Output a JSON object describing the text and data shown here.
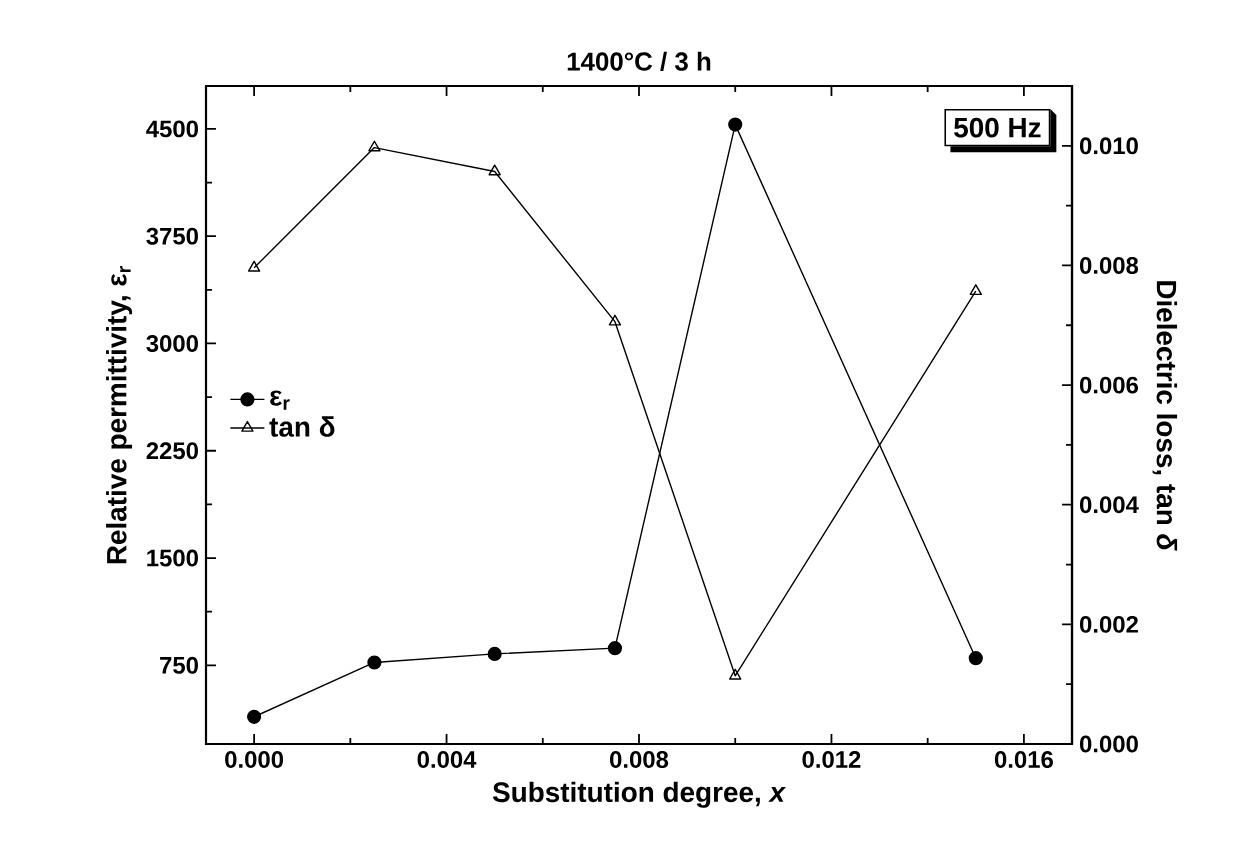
{
  "chart_data": {
    "type": "line",
    "title": "1400°C / 3 h",
    "xlabel": "Substitution degree, *x*",
    "ylabel": "Relative permittivity, ε$_{r}$",
    "y2label": "Dielectric loss, tan *δ*",
    "x": [
      0,
      0.0025,
      0.005,
      0.0075,
      0.01,
      0.015
    ],
    "series": [
      {
        "name": "ε$_{r}$",
        "color": "#000000",
        "marker": "circle",
        "values": [
          390,
          770,
          830,
          870,
          4530,
          800
        ]
      },
      {
        "name": "tan δ",
        "color": "#000000",
        "marker": "triangle",
        "axis": "y2",
        "values": [
          0.00796,
          0.00997,
          0.00957,
          0.00706,
          0.00114,
          0.00757
        ]
      }
    ],
    "xlim": [
      -0.001,
      0.017
    ],
    "xticks": [
      {
        "value": 0,
        "label": "0.000"
      },
      {
        "value": 0.004,
        "label": "0.004"
      },
      {
        "value": 0.008,
        "label": "0.008"
      },
      {
        "value": 0.012,
        "label": "0.012"
      },
      {
        "value": 0.016,
        "label": "0.016"
      }
    ],
    "ylim": [
      200,
      4800
    ],
    "yticks": [
      750,
      1500,
      2250,
      3000,
      3750,
      4500
    ],
    "y2lim": [
      0,
      0.011
    ],
    "y2ticks": [
      {
        "value": 0,
        "label": "0.000"
      },
      {
        "value": 0.002,
        "label": "0.002"
      },
      {
        "value": 0.004,
        "label": "0.004"
      },
      {
        "value": 0.006,
        "label": "0.006"
      },
      {
        "value": 0.008,
        "label": "0.008"
      },
      {
        "value": 0.01,
        "label": "0.010"
      }
    ],
    "annotations": [
      "500 Hz"
    ],
    "legend": "left",
    "grid": false,
    "line_style": "solid"
  }
}
